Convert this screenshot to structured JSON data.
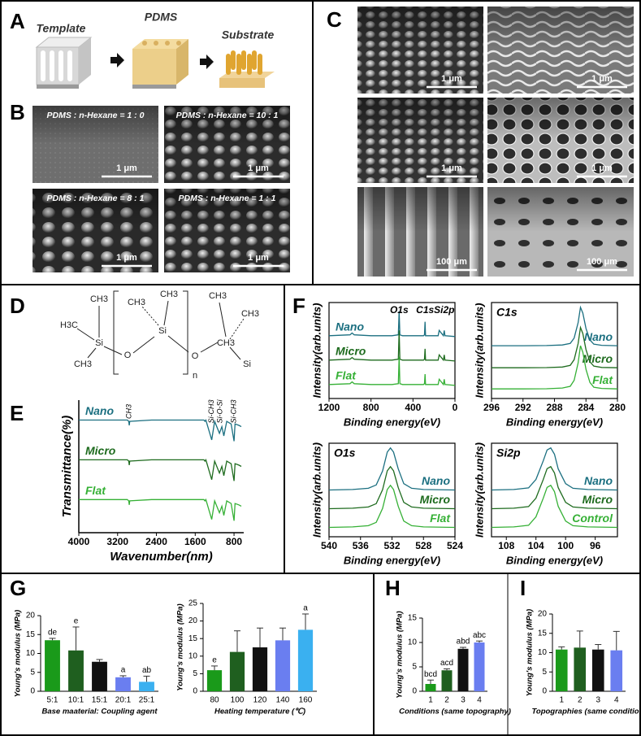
{
  "panels": {
    "A": {
      "letter": "A",
      "labels": [
        "Template",
        "PDMS",
        "Substrate"
      ]
    },
    "B": {
      "letter": "B",
      "tiles": [
        {
          "label": "PDMS : n-Hexane = 1 : 0",
          "scale": "1 μm"
        },
        {
          "label": "PDMS : n-Hexane = 10 : 1",
          "scale": "1 μm"
        },
        {
          "label": "PDMS : n-Hexane = 8 : 1",
          "scale": "1 μm"
        },
        {
          "label": "PDMS : n-Hexane = 1 : 1",
          "scale": "1 μm"
        }
      ]
    },
    "C": {
      "letter": "C",
      "scales": [
        "1 μm",
        "1 μm",
        "1 μm",
        "1 μm",
        "100 μm",
        "100 μm"
      ]
    },
    "D": {
      "letter": "D",
      "molecule": [
        "H3C",
        "CH3",
        "CH3",
        "Si",
        "O",
        "CH3",
        "CH3",
        "Si",
        "O",
        "CH3",
        "CH3",
        "Si",
        "CH3",
        "n"
      ]
    },
    "E": {
      "letter": "E"
    },
    "F": {
      "letter": "F"
    },
    "G": {
      "letter": "G"
    },
    "H": {
      "letter": "H"
    },
    "I": {
      "letter": "I"
    }
  },
  "chart_data": [
    {
      "type": "line",
      "xlabel": "Wavenumber(nm)",
      "ylabel": "Transmittance(%)",
      "legend": "left",
      "x": [
        4000,
        3600,
        3000,
        2970,
        2960,
        2950,
        2500,
        2000,
        1600,
        1420,
        1400,
        1380,
        1260,
        1200,
        1100,
        1050,
        1010,
        950,
        860,
        800,
        780,
        700,
        650
      ],
      "series": [
        {
          "name": "Nano",
          "color": "#1b6f80",
          "values": [
            85,
            85,
            85,
            84,
            81,
            84,
            85,
            85,
            85,
            85,
            84,
            85,
            70,
            84,
            75,
            80,
            73,
            84,
            82,
            69,
            82,
            81,
            80
          ]
        },
        {
          "name": "Micro",
          "color": "#1e6b1e",
          "values": [
            55,
            55,
            55,
            54,
            51,
            54,
            55,
            55,
            55,
            55,
            54,
            55,
            40,
            54,
            45,
            50,
            43,
            54,
            52,
            39,
            52,
            51,
            50
          ]
        },
        {
          "name": "Flat",
          "color": "#35b035",
          "values": [
            25,
            25,
            25,
            24,
            21,
            24,
            25,
            25,
            25,
            25,
            24,
            25,
            10,
            24,
            15,
            20,
            13,
            24,
            22,
            9,
            22,
            21,
            20
          ]
        }
      ],
      "annotations": [
        {
          "text": "CH3",
          "x": 2960
        },
        {
          "text": "Si-CH3",
          "x": 1260
        },
        {
          "text": "Si-O-Si",
          "x": 1080
        },
        {
          "text": "Si-CH3",
          "x": 800
        }
      ],
      "xlim": [
        4000,
        600
      ],
      "xticks": [
        4000,
        3200,
        2400,
        1600,
        800
      ],
      "ylim": [
        0,
        100
      ]
    },
    {
      "type": "line",
      "xlabel": "Binding energy(eV)",
      "ylabel": "Intensity(arb.units)",
      "legend": "left",
      "x": [
        1200,
        1000,
        980,
        960,
        800,
        600,
        540,
        532,
        525,
        500,
        300,
        290,
        285,
        280,
        200,
        160,
        150,
        110,
        102,
        95,
        0
      ],
      "series": [
        {
          "name": "Nano",
          "color": "#1b6f80",
          "values": [
            72,
            73,
            75,
            73,
            72,
            72,
            73,
            100,
            73,
            72,
            72,
            73,
            88,
            72,
            72,
            72,
            78,
            72,
            78,
            72,
            71
          ]
        },
        {
          "name": "Micro",
          "color": "#1e6b1e",
          "values": [
            44,
            45,
            47,
            45,
            44,
            44,
            45,
            78,
            45,
            44,
            44,
            45,
            57,
            44,
            44,
            44,
            50,
            44,
            50,
            44,
            43
          ]
        },
        {
          "name": "Flat",
          "color": "#35b035",
          "values": [
            16,
            17,
            19,
            17,
            16,
            16,
            17,
            48,
            17,
            16,
            16,
            17,
            28,
            16,
            16,
            16,
            22,
            16,
            22,
            16,
            15
          ]
        }
      ],
      "annotations": [
        {
          "text": "O1s",
          "x": 532
        },
        {
          "text": "C1s",
          "x": 285
        },
        {
          "text": "Si2p",
          "x": 102
        }
      ],
      "xlim": [
        1200,
        0
      ],
      "xticks": [
        1200,
        800,
        400,
        0
      ],
      "ylim": [
        0,
        110
      ]
    },
    {
      "type": "line",
      "title": "C1s",
      "xlabel": "Binding energy(eV)",
      "ylabel": "Intensity(arb.units)",
      "legend": "right",
      "x": [
        296,
        292,
        289,
        287,
        286,
        285.5,
        285,
        284.7,
        284.4,
        284,
        283.5,
        283,
        282,
        280
      ],
      "series": [
        {
          "name": "Nano",
          "color": "#1b6f80",
          "values": [
            55,
            55,
            55.2,
            55.8,
            57.4,
            63,
            79,
            95,
            89,
            73,
            61,
            56.6,
            55.4,
            55
          ]
        },
        {
          "name": "Micro",
          "color": "#1e6b1e",
          "values": [
            32,
            32,
            32.2,
            32.8,
            34.5,
            40.4,
            57.2,
            74,
            67.7,
            50.9,
            38.3,
            33.7,
            32.4,
            32
          ]
        },
        {
          "name": "Flat",
          "color": "#35b035",
          "values": [
            10,
            10,
            10.2,
            10.9,
            12.7,
            19,
            37,
            55,
            48.3,
            30.3,
            16.8,
            11.8,
            10.5,
            10
          ]
        }
      ],
      "xlim": [
        296,
        280
      ],
      "xticks": [
        296,
        292,
        288,
        284,
        280
      ],
      "ylim": [
        0,
        100
      ]
    },
    {
      "type": "line",
      "title": "O1s",
      "xlabel": "Binding energy(eV)",
      "ylabel": "Intensity(arb.units)",
      "legend": "right",
      "x": [
        540,
        537,
        535,
        534,
        533.2,
        532.6,
        532.2,
        531.8,
        531.2,
        530.5,
        529.5,
        528,
        524
      ],
      "series": [
        {
          "name": "Nano",
          "color": "#1b6f80",
          "values": [
            50,
            50.5,
            51.8,
            55.4,
            70.3,
            90.5,
            95,
            90.5,
            72.5,
            56.8,
            51.8,
            50.5,
            50
          ]
        },
        {
          "name": "Micro",
          "color": "#1e6b1e",
          "values": [
            30,
            30.5,
            31.8,
            35.4,
            50.3,
            70.5,
            75,
            70.5,
            52.5,
            36.8,
            31.8,
            30.5,
            30
          ]
        },
        {
          "name": "Flat",
          "color": "#35b035",
          "values": [
            10,
            10.5,
            11.8,
            15.4,
            30.3,
            50.5,
            55,
            50.5,
            32.5,
            16.8,
            11.8,
            10.5,
            10
          ]
        }
      ],
      "xlim": [
        540,
        524
      ],
      "xticks": [
        540,
        536,
        532,
        528,
        524
      ],
      "ylim": [
        0,
        100
      ]
    },
    {
      "type": "line",
      "title": "Si2p",
      "xlabel": "Binding energy(eV)",
      "ylabel": "Intensity(arb.units)",
      "legend": "right",
      "x": [
        110,
        107,
        105,
        104,
        103,
        102.5,
        102,
        101.5,
        101,
        100,
        99,
        97,
        93
      ],
      "series": [
        {
          "name": "Nano",
          "color": "#1b6f80",
          "values": [
            50,
            50.5,
            52.3,
            61.3,
            81.5,
            92.8,
            95,
            88.3,
            72.5,
            56.8,
            51.8,
            50.5,
            50
          ]
        },
        {
          "name": "Micro",
          "color": "#1e6b1e",
          "values": [
            30,
            30.5,
            32.3,
            41.3,
            61.5,
            72.8,
            75,
            68.3,
            52.5,
            36.8,
            31.8,
            30.5,
            30
          ]
        },
        {
          "name": "Control",
          "color": "#35b035",
          "values": [
            10,
            10.5,
            12.3,
            21.3,
            41.5,
            52.8,
            55,
            48.3,
            32.5,
            16.8,
            11.8,
            10.5,
            10
          ]
        }
      ],
      "xlim": [
        110,
        93
      ],
      "xticks": [
        108,
        104,
        100,
        96
      ],
      "ylim": [
        0,
        100
      ]
    },
    {
      "type": "bar",
      "xlabel": "Base maaterial: Coupling agent",
      "ylabel": "Young's modulus (MPa)",
      "categories": [
        "5:1",
        "10:1",
        "15:1",
        "20:1",
        "25:1"
      ],
      "values": [
        13.5,
        10.8,
        7.8,
        3.7,
        2.5
      ],
      "errors": [
        0.5,
        6.2,
        0.6,
        0.4,
        1.5
      ],
      "annotations": [
        "de",
        "e",
        null,
        "a",
        "ab"
      ],
      "colors": [
        "#1a9a1a",
        "#1f5f1f",
        "#111111",
        "#6a7ef0",
        "#3ab0f0"
      ],
      "ylim": [
        0,
        20
      ],
      "yticks": [
        0,
        5,
        10,
        15,
        20
      ]
    },
    {
      "type": "bar",
      "xlabel": "Heating temperature (℃)",
      "ylabel": "Young's modulus (MPa)",
      "categories": [
        "80",
        "100",
        "120",
        "140",
        "160"
      ],
      "values": [
        6,
        11.2,
        12.5,
        14.5,
        17.5
      ],
      "errors": [
        1.2,
        6,
        5.5,
        3.5,
        4.5
      ],
      "annotations": [
        "e",
        null,
        null,
        null,
        "a"
      ],
      "colors": [
        "#1a9a1a",
        "#1f5f1f",
        "#111111",
        "#6a7ef0",
        "#3ab0f0"
      ],
      "ylim": [
        0,
        25
      ],
      "yticks": [
        0,
        5,
        10,
        15,
        20,
        25
      ]
    },
    {
      "type": "bar",
      "xlabel": "Conditions (same topography)",
      "ylabel": "Young's modulus (MPa)",
      "categories": [
        "1",
        "2",
        "3",
        "4"
      ],
      "values": [
        1.5,
        4.3,
        8.7,
        10
      ],
      "errors": [
        0.8,
        0.3,
        0.3,
        0.3
      ],
      "annotations": [
        "bcd",
        "acd",
        "abd",
        "abc"
      ],
      "colors": [
        "#1a9a1a",
        "#1f5f1f",
        "#111111",
        "#6a7ef0"
      ],
      "ylim": [
        0,
        15
      ],
      "yticks": [
        0,
        5,
        10,
        15
      ]
    },
    {
      "type": "bar",
      "xlabel": "Topographies (same condition)",
      "ylabel": "Young's modulus (MPa)",
      "categories": [
        "1",
        "2",
        "3",
        "4"
      ],
      "values": [
        10.8,
        11.3,
        10.8,
        10.6
      ],
      "errors": [
        0.7,
        4.3,
        1.3,
        4.9
      ],
      "annotations": [
        null,
        null,
        null,
        null
      ],
      "colors": [
        "#1a9a1a",
        "#1f5f1f",
        "#111111",
        "#6a7ef0"
      ],
      "ylim": [
        0,
        20
      ],
      "yticks": [
        0,
        5,
        10,
        15,
        20
      ]
    }
  ]
}
